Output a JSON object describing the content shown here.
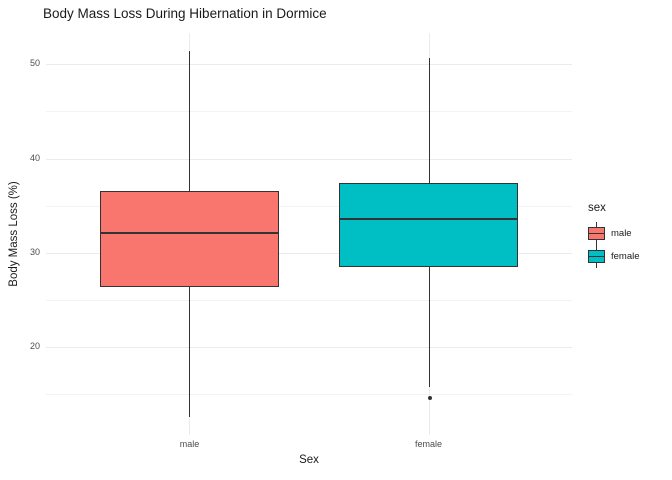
{
  "title": "Body Mass Loss During Hibernation in Dormice",
  "x_axis": {
    "title": "Sex",
    "categories": [
      "male",
      "female"
    ]
  },
  "y_axis": {
    "title": "Body Mass Loss (%)",
    "tick_labels": [
      "20",
      "30",
      "40",
      "50"
    ]
  },
  "legend": {
    "title": "sex",
    "items": [
      {
        "label": "male",
        "color": "#F8766D"
      },
      {
        "label": "female",
        "color": "#00BFC4"
      }
    ],
    "position": "right"
  },
  "colors": {
    "male_fill": "#F8766D",
    "female_fill": "#00BFC4",
    "stroke": "#333333",
    "grid_major": "#EBEBEB",
    "grid_minor": "#F3F3F3",
    "axis_text": "#4D4D4D",
    "background": "#FFFFFF"
  },
  "chart_data": {
    "type": "boxplot",
    "title": "Body Mass Loss During Hibernation in Dormice",
    "xlabel": "Sex",
    "ylabel": "Body Mass Loss (%)",
    "categories": [
      "male",
      "female"
    ],
    "series": [
      {
        "name": "male",
        "fill": "#F8766D",
        "whisker_low": 12.6,
        "q1": 26.4,
        "median": 32.1,
        "q3": 36.6,
        "whisker_high": 51.4,
        "outliers": []
      },
      {
        "name": "female",
        "fill": "#00BFC4",
        "whisker_low": 15.8,
        "q1": 28.5,
        "median": 33.6,
        "q3": 37.4,
        "whisker_high": 50.6,
        "outliers": [
          14.6
        ]
      }
    ],
    "ylim": [
      10.7,
      53.3
    ],
    "y_major_gridlines": [
      20,
      30,
      40,
      50
    ],
    "y_minor_gridlines": [
      15,
      25,
      35,
      45
    ],
    "grid": true,
    "legend_position": "right"
  }
}
